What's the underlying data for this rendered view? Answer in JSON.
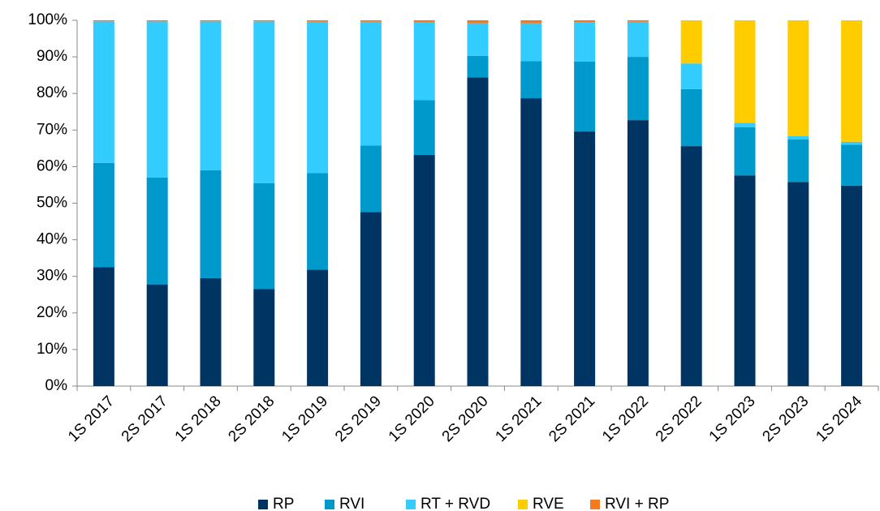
{
  "chart_data": {
    "type": "stacked_bar",
    "categories": [
      "1S 2017",
      "2S 2017",
      "1S 2018",
      "2S 2018",
      "1S 2019",
      "2S 2019",
      "1S 2020",
      "2S 2020",
      "1S 2021",
      "2S 2021",
      "1S 2022",
      "2S 2022",
      "1S 2023",
      "2S 2023",
      "1S 2024"
    ],
    "series": [
      {
        "name": "RP",
        "color": "#003462",
        "values": [
          32.5,
          27.8,
          29.5,
          26.5,
          31.8,
          47.6,
          63.2,
          84.4,
          78.7,
          69.6,
          72.7,
          65.6,
          57.6,
          55.8,
          54.8
        ]
      },
      {
        "name": "RVI",
        "color": "#0099cc",
        "values": [
          28.5,
          29.2,
          29.5,
          29,
          26.4,
          18.2,
          15,
          5.9,
          10.1,
          19.1,
          17.3,
          15.6,
          13.2,
          11.6,
          11.2
        ]
      },
      {
        "name": "RT + RVD",
        "color": "#33ccff",
        "values": [
          38.7,
          42.7,
          40.7,
          44.2,
          41.4,
          33.8,
          21.2,
          8.9,
          10.4,
          10.7,
          9.6,
          7,
          1.2,
          0.9,
          0.8
        ]
      },
      {
        "name": "RVE",
        "color": "#ffcc00",
        "values": [
          0,
          0,
          0,
          0,
          0,
          0,
          0,
          0,
          0,
          0,
          0,
          11.8,
          28,
          31.7,
          33.2
        ]
      },
      {
        "name": "RVI + RP",
        "color": "#f47920",
        "values": [
          0.3,
          0.3,
          0.3,
          0.3,
          0.4,
          0.4,
          0.6,
          0.8,
          0.8,
          0.6,
          0.4,
          0,
          0,
          0,
          0
        ]
      }
    ],
    "ylim": [
      0,
      100
    ],
    "yticks": [
      {
        "value": 0,
        "label": "0%"
      },
      {
        "value": 10,
        "label": "10%"
      },
      {
        "value": 20,
        "label": "20%"
      },
      {
        "value": 30,
        "label": "30%"
      },
      {
        "value": 40,
        "label": "40%"
      },
      {
        "value": 50,
        "label": "50%"
      },
      {
        "value": 60,
        "label": "60%"
      },
      {
        "value": 70,
        "label": "70%"
      },
      {
        "value": 80,
        "label": "80%"
      },
      {
        "value": 90,
        "label": "90%"
      },
      {
        "value": 100,
        "label": "100%"
      }
    ],
    "legend": "bottom"
  }
}
